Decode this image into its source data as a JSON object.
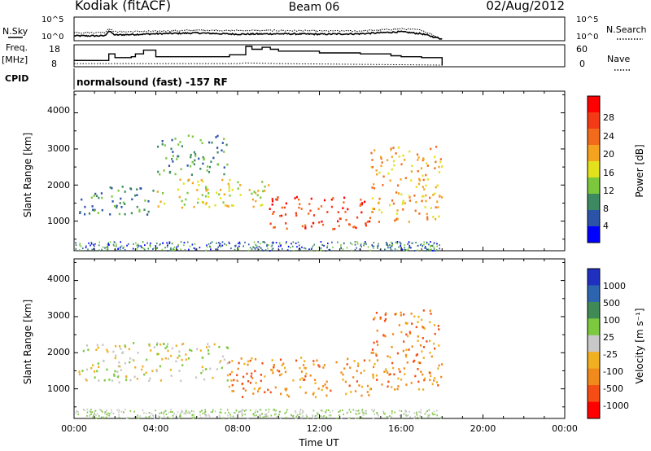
{
  "header": {
    "station": "Kodiak (fitACF)",
    "beam": "Beam 06",
    "date": "02/Aug/2012"
  },
  "side_labels": {
    "nsky": "N.Sky",
    "freq": "Freq.",
    "freq_unit": "[MHz]",
    "cpid": "CPID",
    "nsearch": "N.Search",
    "nave": "Nave"
  },
  "noise_panel": {
    "left_ticks": [
      "10^5",
      "10^0"
    ],
    "right_ticks": [
      "10^5",
      "10^0"
    ]
  },
  "freq_panel": {
    "left_ticks": [
      "18",
      "8"
    ],
    "right_ticks": [
      "60",
      "0"
    ]
  },
  "cpid_text": "normalsound (fast) -157 RF",
  "colors": {
    "frame": "#000000",
    "power_scale": [
      "#0000ff",
      "#2b54a8",
      "#3d8a62",
      "#7bc83c",
      "#e3e11b",
      "#f5a31f",
      "#f26a1b",
      "#f43a14",
      "#ff0000"
    ],
    "velocity_scale": [
      "#ff0000",
      "#f54d14",
      "#f18a1c",
      "#f0b020",
      "#c8c8c8",
      "#7cc83f",
      "#3f8a55",
      "#2c64b0",
      "#1f2fbf"
    ]
  },
  "power_panel": {
    "ylabel": "Slant Range [km]",
    "yticks": [
      "4000",
      "3000",
      "2000",
      "1000"
    ],
    "colorbar_label": "Power [dB]",
    "colorbar_ticks": [
      "28",
      "24",
      "20",
      "16",
      "12",
      "8",
      "4"
    ]
  },
  "velocity_panel": {
    "ylabel": "Slant Range [km]",
    "yticks": [
      "4000",
      "3000",
      "2000",
      "1000"
    ],
    "colorbar_label": "Velocity [m s⁻¹]",
    "colorbar_ticks": [
      "1000",
      "500",
      "100",
      "25",
      "-25",
      "-100",
      "-500",
      "-1000"
    ]
  },
  "xaxis": {
    "ticks": [
      "00:00",
      "04:00",
      "08:00",
      "12:00",
      "16:00",
      "20:00",
      "00:00"
    ],
    "label": "Time UT"
  },
  "chart_data": [
    {
      "type": "line",
      "series": [
        {
          "name": "N.Sky",
          "x_hours": [
            0,
            1.5,
            1.7,
            2,
            4,
            6,
            8,
            10,
            12,
            14,
            16,
            17,
            18
          ],
          "log10": [
            0.8,
            0.8,
            2.0,
            1.0,
            1.3,
            1.5,
            1.2,
            1.3,
            1.2,
            1.3,
            1.8,
            1.3,
            0.0
          ]
        },
        {
          "name": "N.Search",
          "x_hours": [
            0,
            1.5,
            1.7,
            2,
            4,
            6,
            8,
            10,
            12,
            14,
            16,
            17,
            18
          ],
          "log10": [
            1.6,
            1.6,
            2.6,
            1.8,
            1.9,
            2.2,
            2.1,
            2.1,
            2.0,
            2.0,
            2.5,
            2.2,
            0.0
          ]
        }
      ],
      "xlim": [
        0,
        24
      ],
      "ylim_log10": [
        0,
        5
      ]
    },
    {
      "type": "line",
      "series": [
        {
          "name": "Freq.",
          "x_hours": [
            0,
            1.55,
            1.7,
            2.0,
            2.8,
            3.0,
            3.4,
            4.0,
            7.0,
            7.6,
            8.4,
            8.7,
            9.2,
            9.6,
            10.0,
            12.0,
            14.0,
            15.5,
            16.0,
            17.0,
            18.0
          ],
          "values": [
            10.5,
            10.5,
            14.0,
            12.0,
            12.5,
            14.0,
            16.0,
            12.5,
            12.5,
            13.5,
            18.0,
            16.5,
            17.5,
            16.5,
            15.5,
            14.5,
            14.0,
            13.0,
            12.5,
            12.0,
            8
          ]
        },
        {
          "name": "Nave",
          "x_hours": [
            0,
            8,
            8.4,
            10,
            18
          ],
          "values": [
            5,
            5,
            7,
            5,
            0
          ]
        }
      ],
      "xlim": [
        0,
        24
      ],
      "ylim_freq_mhz": [
        8,
        18
      ],
      "ylim_nave": [
        0,
        60
      ]
    },
    {
      "type": "heatmap",
      "quantity": "Power [dB]",
      "xlim_hours": [
        0,
        24
      ],
      "ylim_km": [
        180,
        4600
      ],
      "color_range": [
        0,
        30
      ],
      "data_end_hour": 18,
      "features": [
        {
          "t": [
            0.2,
            4.0
          ],
          "range_km": [
            1200,
            2000
          ],
          "power_db": 9
        },
        {
          "t": [
            4.0,
            9.5
          ],
          "range_km": [
            1400,
            2200
          ],
          "power_db": 15
        },
        {
          "t": [
            9.5,
            14.5
          ],
          "range_km": [
            800,
            1700
          ],
          "power_db": 26
        },
        {
          "t": [
            14.5,
            18.0
          ],
          "range_km": [
            1000,
            3100
          ],
          "power_db": 17
        },
        {
          "t": [
            4.0,
            7.5
          ],
          "range_km": [
            2300,
            3400
          ],
          "power_db": 8
        }
      ]
    },
    {
      "type": "heatmap",
      "quantity": "Velocity [m s⁻¹]",
      "xlim_hours": [
        0,
        24
      ],
      "ylim_km": [
        180,
        4600
      ],
      "color_range": [
        -1000,
        1000
      ],
      "data_end_hour": 18,
      "features": [
        {
          "t": [
            0.2,
            7.5
          ],
          "range_km": [
            1200,
            2300
          ],
          "velocity": 0
        },
        {
          "t": [
            7.5,
            14.5
          ],
          "range_km": [
            800,
            1900
          ],
          "velocity": -150
        },
        {
          "t": [
            14.5,
            18.0
          ],
          "range_km": [
            1000,
            3200
          ],
          "velocity": -300
        }
      ]
    }
  ]
}
